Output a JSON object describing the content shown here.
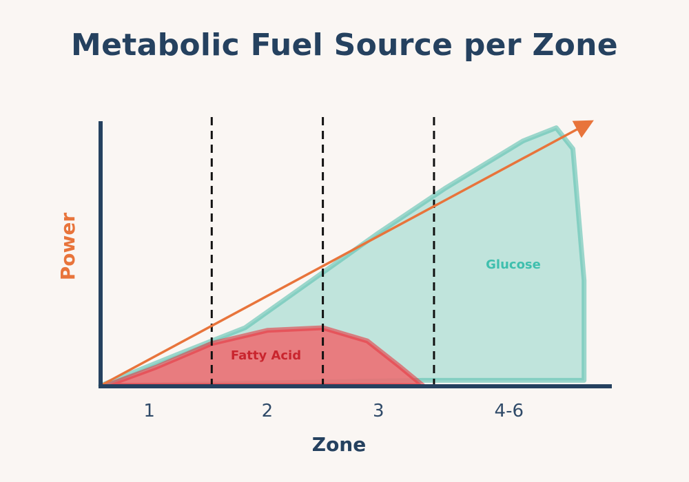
{
  "chart_data": {
    "type": "area",
    "title": "Metabolic Fuel Source per Zone",
    "xlabel": "Zone",
    "ylabel": "Power",
    "categories": [
      "1",
      "2",
      "3",
      "4-6"
    ],
    "zone_boundaries": [
      1.5,
      2.5,
      3.5
    ],
    "xlim": [
      0.5,
      5.1
    ],
    "ylim": [
      0,
      1
    ],
    "series": [
      {
        "name": "Glucose",
        "color": "#8fd5c8",
        "stroke": "#5cc2b0",
        "points": [
          [
            0.5,
            0.0
          ],
          [
            1.2,
            0.12
          ],
          [
            1.8,
            0.22
          ],
          [
            2.4,
            0.4
          ],
          [
            3.0,
            0.58
          ],
          [
            3.6,
            0.75
          ],
          [
            4.3,
            0.93
          ],
          [
            4.6,
            0.98
          ],
          [
            4.75,
            0.9
          ],
          [
            4.85,
            0.4
          ],
          [
            4.85,
            0.02
          ],
          [
            3.4,
            0.02
          ]
        ]
      },
      {
        "name": "Fatty Acid",
        "color": "#ee6a6f",
        "stroke": "#e43b43",
        "points": [
          [
            0.55,
            0.0
          ],
          [
            1.0,
            0.07
          ],
          [
            1.5,
            0.16
          ],
          [
            2.0,
            0.21
          ],
          [
            2.5,
            0.22
          ],
          [
            2.9,
            0.17
          ],
          [
            3.2,
            0.07
          ],
          [
            3.4,
            0.0
          ]
        ]
      }
    ],
    "trend": {
      "name": "",
      "color": "#e8743b",
      "from": [
        0.5,
        0.0
      ],
      "to": [
        4.9,
        1.0
      ]
    },
    "labels": {
      "glucose": "Glucose",
      "fatty_acid": "Fatty Acid"
    },
    "colors": {
      "axis": "#25415f",
      "divider": "#111111",
      "glucose_text": "#3fbfae",
      "fatty_text": "#c9252e"
    }
  }
}
